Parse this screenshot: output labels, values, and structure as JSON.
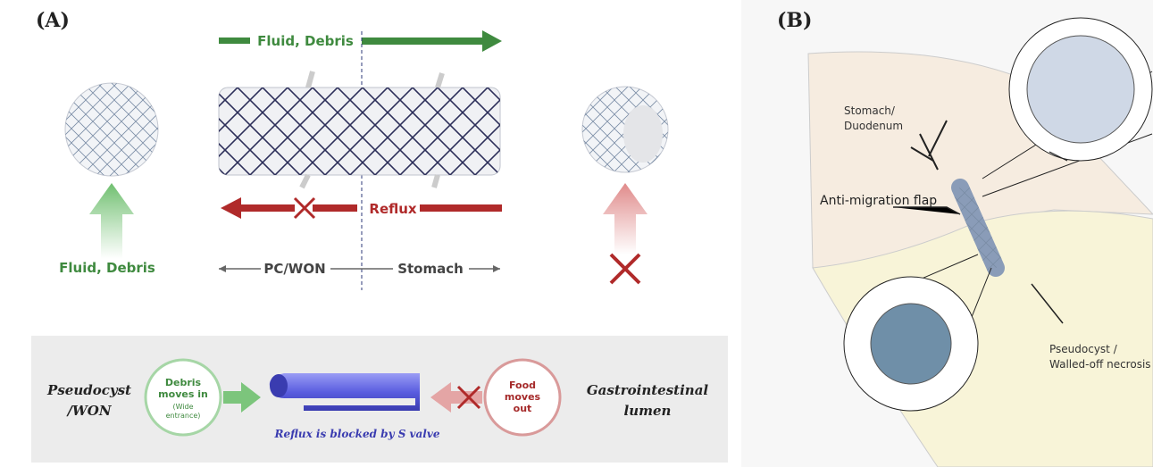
{
  "panel_a": {
    "label": "(A)",
    "flow_top": "Fluid, Debris",
    "flow_left": "Fluid, Debris",
    "reflux": "Reflux",
    "side_left": "PC/WON",
    "side_right": "Stomach",
    "box": {
      "left_label": [
        "Pseudocyst",
        "/WON"
      ],
      "in_circle": [
        "Debris",
        "moves in"
      ],
      "in_note": [
        "(Wide",
        "entrance)"
      ],
      "caption": "Reflux is blocked by S valve",
      "out_circle": [
        "Food",
        "moves",
        "out"
      ],
      "right_label": [
        "Gastrointestinal",
        "lumen"
      ]
    }
  },
  "panel_b": {
    "label": "(B)",
    "stomach": [
      "Stomach/",
      "Duodenum"
    ],
    "flap": "Anti-migration flap",
    "cyst": [
      "Pseudocyst /",
      "Walled-off necrosis"
    ]
  }
}
